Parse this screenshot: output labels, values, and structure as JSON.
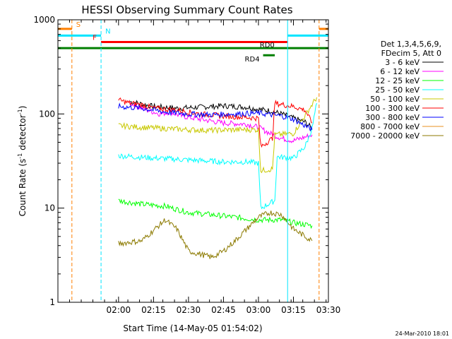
{
  "chart_data": {
    "type": "line",
    "title": "HESSI Observing Summary Count Rates",
    "xlabel": "Start Time (14-May-05 01:54:02)",
    "ylabel_main": "Count Rate (s",
    "ylabel_sup1": "-1",
    "ylabel_mid": " detector",
    "ylabel_sup2": "-1",
    "ylabel_end": ")",
    "yscale": "log",
    "ylim": [
      1,
      1000
    ],
    "xlim_minutes": [
      94,
      210
    ],
    "x_ticks": [
      {
        "t": 120,
        "label": "02:00"
      },
      {
        "t": 135,
        "label": "02:15"
      },
      {
        "t": 150,
        "label": "02:30"
      },
      {
        "t": 165,
        "label": "02:45"
      },
      {
        "t": 180,
        "label": "03:00"
      },
      {
        "t": 195,
        "label": "03:15"
      },
      {
        "t": 210,
        "label": "03:30"
      }
    ],
    "y_ticks": [
      {
        "v": 1,
        "label": "1"
      },
      {
        "v": 10,
        "label": "10"
      },
      {
        "v": 100,
        "label": "100"
      },
      {
        "v": 1000,
        "label": "1000"
      }
    ],
    "legend_header": [
      "Det 1,3,4,5,6,9,",
      "FDecim 5, Att 0"
    ],
    "series": [
      {
        "name": "3 - 6 keV",
        "color": "#000000",
        "points": [
          [
            125,
            135
          ],
          [
            135,
            120
          ],
          [
            145,
            115
          ],
          [
            155,
            118
          ],
          [
            165,
            122
          ],
          [
            175,
            118
          ],
          [
            180,
            112
          ],
          [
            185,
            108
          ],
          [
            190,
            100
          ],
          [
            195,
            90
          ],
          [
            200,
            82
          ],
          [
            203,
            70
          ]
        ]
      },
      {
        "name": "6 - 12 keV",
        "color": "#ff00ff",
        "points": [
          [
            125,
            130
          ],
          [
            132,
            110
          ],
          [
            138,
            100
          ],
          [
            142,
            105
          ],
          [
            147,
            95
          ],
          [
            155,
            88
          ],
          [
            165,
            80
          ],
          [
            175,
            78
          ],
          [
            180,
            72
          ],
          [
            185,
            62
          ],
          [
            190,
            55
          ],
          [
            195,
            52
          ],
          [
            203,
            60
          ]
        ]
      },
      {
        "name": "12 - 25 keV",
        "color": "#00ff00",
        "points": [
          [
            120,
            12
          ],
          [
            130,
            11
          ],
          [
            140,
            10.5
          ],
          [
            150,
            9
          ],
          [
            160,
            8.5
          ],
          [
            170,
            8
          ],
          [
            180,
            7.5
          ],
          [
            190,
            7.5
          ],
          [
            195,
            7
          ],
          [
            203,
            6.5
          ]
        ]
      },
      {
        "name": "25 - 50 keV",
        "color": "#00ffff",
        "points": [
          [
            120,
            36
          ],
          [
            135,
            34
          ],
          [
            145,
            33
          ],
          [
            155,
            32
          ],
          [
            165,
            31
          ],
          [
            175,
            31
          ],
          [
            180,
            30
          ],
          [
            181,
            10
          ],
          [
            187,
            12
          ],
          [
            188,
            35
          ],
          [
            195,
            34
          ],
          [
            200,
            45
          ],
          [
            203,
            70
          ],
          [
            205,
            130
          ]
        ]
      },
      {
        "name": "50 - 100 keV",
        "color": "#c8c800",
        "points": [
          [
            120,
            75
          ],
          [
            130,
            72
          ],
          [
            140,
            70
          ],
          [
            150,
            68
          ],
          [
            160,
            67
          ],
          [
            170,
            68
          ],
          [
            180,
            68
          ],
          [
            181,
            25
          ],
          [
            186,
            26
          ],
          [
            187,
            60
          ],
          [
            195,
            62
          ],
          [
            205,
            150
          ]
        ]
      },
      {
        "name": "100 - 300 keV",
        "color": "#ff0000",
        "points": [
          [
            120,
            140
          ],
          [
            125,
            130
          ],
          [
            130,
            125
          ],
          [
            135,
            115
          ],
          [
            145,
            110
          ],
          [
            155,
            100
          ],
          [
            165,
            95
          ],
          [
            175,
            92
          ],
          [
            180,
            90
          ],
          [
            181,
            45
          ],
          [
            186,
            55
          ],
          [
            187,
            130
          ],
          [
            195,
            120
          ],
          [
            200,
            110
          ],
          [
            203,
            80
          ]
        ]
      },
      {
        "name": "300 - 800 keV",
        "color": "#0000ff",
        "points": [
          [
            120,
            120
          ],
          [
            130,
            115
          ],
          [
            140,
            105
          ],
          [
            150,
            100
          ],
          [
            160,
            98
          ],
          [
            170,
            100
          ],
          [
            180,
            102
          ],
          [
            190,
            95
          ],
          [
            195,
            88
          ],
          [
            200,
            75
          ],
          [
            203,
            68
          ]
        ]
      },
      {
        "name": "800 - 7000 keV",
        "color": "#e89020",
        "points": []
      },
      {
        "name": "7000 - 20000 keV",
        "color": "#8c7a00",
        "points": [
          [
            120,
            4.2
          ],
          [
            130,
            4.5
          ],
          [
            140,
            7.5
          ],
          [
            145,
            6
          ],
          [
            150,
            3.5
          ],
          [
            160,
            3
          ],
          [
            165,
            3.5
          ],
          [
            170,
            4.5
          ],
          [
            175,
            6
          ],
          [
            180,
            8
          ],
          [
            185,
            9
          ],
          [
            190,
            8.5
          ],
          [
            195,
            6
          ],
          [
            200,
            5
          ],
          [
            203,
            4.5
          ]
        ]
      }
    ],
    "status_flags": [
      {
        "label": "S",
        "color": "#ff7f00",
        "segments": [
          [
            94,
            100
          ],
          [
            206,
            210
          ]
        ],
        "y": 800
      },
      {
        "label": "N",
        "color": "#00e5ff",
        "segments": [
          [
            94,
            112.5
          ],
          [
            192.5,
            210
          ]
        ],
        "y": 680
      },
      {
        "label": "F",
        "color": "#ff0000",
        "segments": [
          [
            112.5,
            192.5
          ]
        ],
        "y": 580
      },
      {
        "label": "RD0",
        "color": "#007f00",
        "segments": [
          [
            94,
            210
          ]
        ],
        "y": 500
      },
      {
        "label": "RD4",
        "color": "#007f00",
        "segments": [
          [
            182,
            187
          ]
        ],
        "y": 420
      }
    ],
    "vertical_markers": [
      {
        "t": 100,
        "color": "#ff7f00",
        "dashed": true
      },
      {
        "t": 112.5,
        "color": "#00e5ff",
        "dashed": true
      },
      {
        "t": 192.5,
        "color": "#00e5ff",
        "dashed": false
      },
      {
        "t": 206,
        "color": "#ff7f00",
        "dashed": true
      }
    ],
    "timestamp": "24-Mar-2010 18:01"
  }
}
